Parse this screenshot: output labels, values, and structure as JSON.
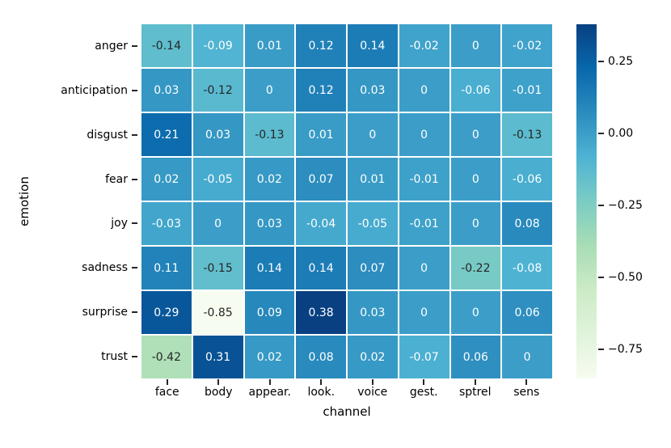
{
  "chart_data": {
    "type": "heatmap",
    "title": "",
    "xlabel": "channel",
    "ylabel": "emotion",
    "rows": [
      "anger",
      "anticipation",
      "disgust",
      "fear",
      "joy",
      "sadness",
      "surprise",
      "trust"
    ],
    "columns": [
      "face",
      "body",
      "appear.",
      "look.",
      "voice",
      "gest.",
      "sptrel",
      "sens"
    ],
    "values": [
      [
        -0.14,
        -0.09,
        0.01,
        0.12,
        0.14,
        -0.02,
        0,
        -0.02
      ],
      [
        0.03,
        -0.12,
        0,
        0.12,
        0.03,
        0,
        -0.06,
        -0.01
      ],
      [
        0.21,
        0.03,
        -0.13,
        0.01,
        0,
        0,
        0,
        -0.13
      ],
      [
        0.02,
        -0.05,
        0.02,
        0.07,
        0.01,
        -0.01,
        0,
        -0.06
      ],
      [
        -0.03,
        0,
        0.03,
        -0.04,
        -0.05,
        -0.01,
        0,
        0.08
      ],
      [
        0.11,
        -0.15,
        0.14,
        0.14,
        0.07,
        0,
        -0.22,
        -0.08
      ],
      [
        0.29,
        -0.85,
        0.09,
        0.38,
        0.03,
        0,
        0,
        0.06
      ],
      [
        -0.42,
        0.31,
        0.02,
        0.08,
        0.02,
        -0.07,
        0.06,
        0
      ]
    ],
    "cell_labels": [
      [
        "-0.14",
        "-0.09",
        "0.01",
        "0.12",
        "0.14",
        "-0.02",
        "0",
        "-0.02"
      ],
      [
        "0.03",
        "-0.12",
        "0",
        "0.12",
        "0.03",
        "0",
        "-0.06",
        "-0.01"
      ],
      [
        "0.21",
        "0.03",
        "-0.13",
        "0.01",
        "0",
        "0",
        "0",
        "-0.13"
      ],
      [
        "0.02",
        "-0.05",
        "0.02",
        "0.07",
        "0.01",
        "-0.01",
        "0",
        "-0.06"
      ],
      [
        "-0.03",
        "0",
        "0.03",
        "-0.04",
        "-0.05",
        "-0.01",
        "0",
        "0.08"
      ],
      [
        "0.11",
        "-0.15",
        "0.14",
        "0.14",
        "0.07",
        "0",
        "-0.22",
        "-0.08"
      ],
      [
        "0.29",
        "-0.85",
        "0.09",
        "0.38",
        "0.03",
        "0",
        "0",
        "0.06"
      ],
      [
        "-0.42",
        "0.31",
        "0.02",
        "0.08",
        "0.02",
        "-0.07",
        "0.06",
        "0"
      ]
    ],
    "vmin": -0.85,
    "vmax": 0.38,
    "colormap_name": "GnBu",
    "colormap_anchors": [
      "#f7fcf0",
      "#e0f3db",
      "#ccebc5",
      "#a8ddb5",
      "#7bccc4",
      "#4eb3d3",
      "#2b8cbe",
      "#0868ac",
      "#084081"
    ],
    "colorbar_ticks": [
      {
        "value": 0.25,
        "label": "0.25"
      },
      {
        "value": 0.0,
        "label": "0.00"
      },
      {
        "value": -0.25,
        "label": "−0.25"
      },
      {
        "value": -0.5,
        "label": "−0.50"
      },
      {
        "value": -0.75,
        "label": "−0.75"
      }
    ],
    "colorbar_position": "right",
    "grid_lines_color": "#ffffff",
    "annotation_dark_color": "#262626",
    "annotation_light_color": "#ffffff",
    "background_color": "#ffffff",
    "legend": null
  }
}
